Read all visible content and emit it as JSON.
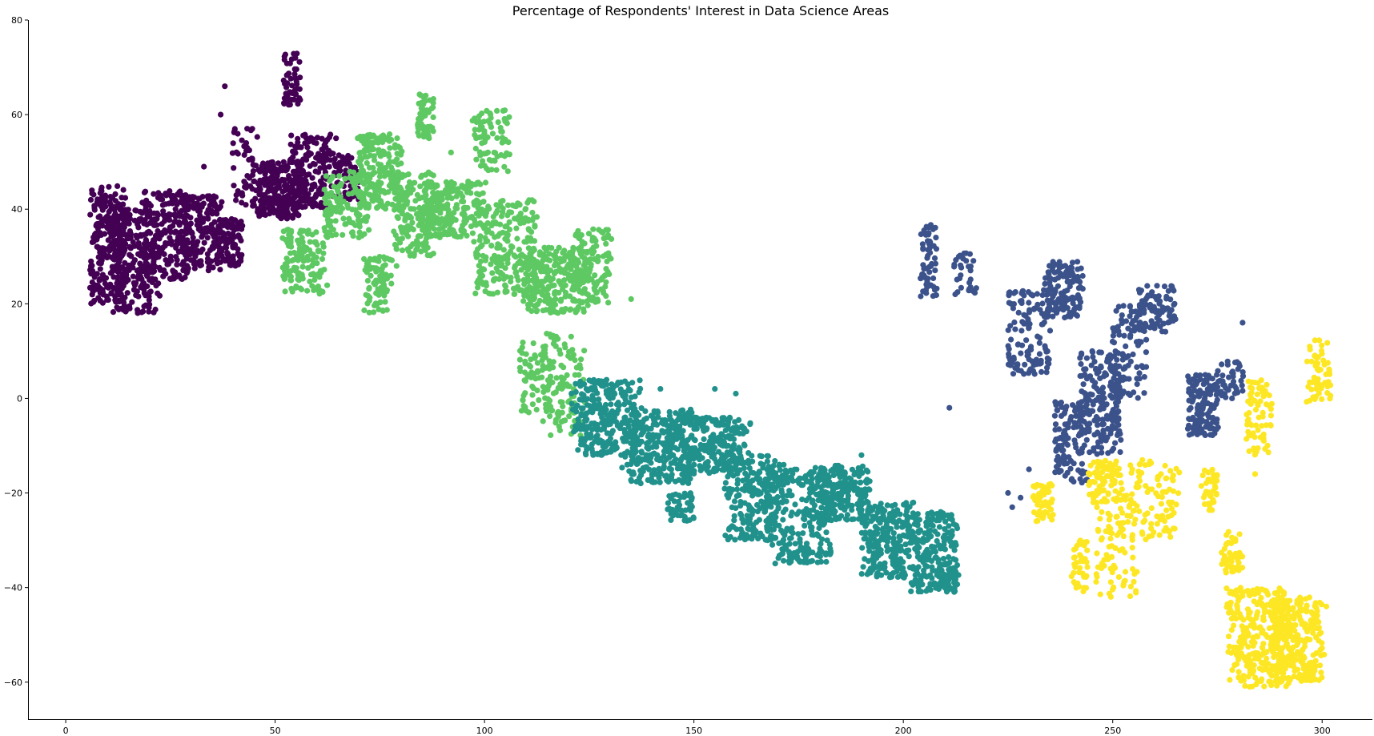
{
  "chart_data": {
    "type": "scatter",
    "title": "Percentage of Respondents' Interest in Data Science Areas",
    "xlabel": "",
    "ylabel": "",
    "xlim": [
      -9,
      312
    ],
    "ylim": [
      -68,
      80
    ],
    "xticks": [
      0,
      50,
      100,
      150,
      200,
      250,
      300
    ],
    "yticks": [
      -60,
      -40,
      -20,
      0,
      20,
      40,
      60,
      80
    ],
    "ytick_labels": [
      "−60",
      "−40",
      "−20",
      "0",
      "20",
      "40",
      "60",
      "80"
    ],
    "grid": false,
    "legend": "none",
    "spines": "left-bottom",
    "marker_radius": 3.6,
    "series": [
      {
        "color": "#440154",
        "clusters": [
          {
            "x": [
              6,
              14
            ],
            "y": [
              20,
              45
            ],
            "n": 260,
            "tilt": 0.6
          },
          {
            "x": [
              12,
              22
            ],
            "y": [
              18,
              40
            ],
            "n": 220,
            "tilt": 0.5
          },
          {
            "x": [
              18,
              30
            ],
            "y": [
              25,
              44
            ],
            "n": 220,
            "tilt": 0.5
          },
          {
            "x": [
              28,
              37
            ],
            "y": [
              27,
              43
            ],
            "n": 170,
            "tilt": 0.4
          },
          {
            "x": [
              36,
              42
            ],
            "y": [
              28,
              38
            ],
            "n": 100,
            "tilt": 0.5
          },
          {
            "x": [
              40,
              46
            ],
            "y": [
              40,
              58
            ],
            "n": 55,
            "tilt": 0.8
          },
          {
            "x": [
              46,
              56
            ],
            "y": [
              38,
              50
            ],
            "n": 240,
            "tilt": 0.3
          },
          {
            "x": [
              52,
              56
            ],
            "y": [
              62,
              73
            ],
            "n": 50,
            "tilt": 1.0
          },
          {
            "x": [
              54,
              64
            ],
            "y": [
              40,
              56
            ],
            "n": 170,
            "tilt": 0.4
          },
          {
            "x": [
              64,
              70
            ],
            "y": [
              42,
              52
            ],
            "n": 60,
            "tilt": 0.6
          }
        ],
        "points": [
          [
            33,
            49
          ],
          [
            37,
            60
          ],
          [
            38,
            66
          ],
          [
            27,
            31
          ],
          [
            49,
            44
          ]
        ]
      },
      {
        "color": "#5ec962",
        "clusters": [
          {
            "x": [
              52,
              62
            ],
            "y": [
              22,
              36
            ],
            "n": 130,
            "tilt": 0.7
          },
          {
            "x": [
              62,
              72
            ],
            "y": [
              34,
              48
            ],
            "n": 130,
            "tilt": 0.6
          },
          {
            "x": [
              70,
              80
            ],
            "y": [
              40,
              56
            ],
            "n": 200,
            "tilt": 0.6
          },
          {
            "x": [
              78,
              88
            ],
            "y": [
              30,
              48
            ],
            "n": 170,
            "tilt": 0.6
          },
          {
            "x": [
              84,
              88
            ],
            "y": [
              55,
              65
            ],
            "n": 55,
            "tilt": 1.0
          },
          {
            "x": [
              86,
              100
            ],
            "y": [
              34,
              46
            ],
            "n": 200,
            "tilt": 0.4
          },
          {
            "x": [
              71,
              78
            ],
            "y": [
              18,
              30
            ],
            "n": 80,
            "tilt": 0.9
          },
          {
            "x": [
              97,
              106
            ],
            "y": [
              48,
              61
            ],
            "n": 80,
            "tilt": 0.8
          },
          {
            "x": [
              98,
              112
            ],
            "y": [
              22,
              42
            ],
            "n": 240,
            "tilt": 0.6
          },
          {
            "x": [
              110,
              124
            ],
            "y": [
              18,
              32
            ],
            "n": 240,
            "tilt": 0.5
          },
          {
            "x": [
              122,
              130
            ],
            "y": [
              20,
              36
            ],
            "n": 120,
            "tilt": 0.6
          },
          {
            "x": [
              108,
              116
            ],
            "y": [
              -3,
              12
            ],
            "n": 70,
            "tilt": 0.8
          },
          {
            "x": [
              114,
              124
            ],
            "y": [
              -8,
              14
            ],
            "n": 110,
            "tilt": 0.9
          }
        ],
        "points": [
          [
            135,
            21
          ],
          [
            70,
            34
          ],
          [
            84,
            32
          ],
          [
            79,
            28
          ],
          [
            92,
            52
          ],
          [
            98,
            55
          ]
        ]
      },
      {
        "color": "#21918c",
        "clusters": [
          {
            "x": [
              122,
              136
            ],
            "y": [
              -12,
              4
            ],
            "n": 270,
            "tilt": 0.2
          },
          {
            "x": [
              134,
              150
            ],
            "y": [
              -18,
              -2
            ],
            "n": 300,
            "tilt": 0.2
          },
          {
            "x": [
              148,
              162
            ],
            "y": [
              -16,
              -4
            ],
            "n": 230,
            "tilt": 0.2
          },
          {
            "x": [
              144,
              150
            ],
            "y": [
              -26,
              -20
            ],
            "n": 50,
            "tilt": 0.5
          },
          {
            "x": [
              158,
              170
            ],
            "y": [
              -30,
              -12
            ],
            "n": 230,
            "tilt": 0.5
          },
          {
            "x": [
              168,
              182
            ],
            "y": [
              -35,
              -14
            ],
            "n": 260,
            "tilt": 0.5
          },
          {
            "x": [
              180,
              192
            ],
            "y": [
              -26,
              -14
            ],
            "n": 200,
            "tilt": 0.4
          },
          {
            "x": [
              190,
              202
            ],
            "y": [
              -38,
              -22
            ],
            "n": 230,
            "tilt": 0.6
          },
          {
            "x": [
              202,
              213
            ],
            "y": [
              -41,
              -24
            ],
            "n": 230,
            "tilt": 0.7
          }
        ],
        "points": [
          [
            155,
            2
          ],
          [
            160,
            1
          ],
          [
            142,
            2
          ],
          [
            178,
            -18
          ],
          [
            190,
            -12
          ]
        ]
      },
      {
        "color": "#3b528b",
        "clusters": [
          {
            "x": [
              204,
              208
            ],
            "y": [
              21,
              37
            ],
            "n": 60,
            "tilt": 0.9
          },
          {
            "x": [
              212,
              218
            ],
            "y": [
              22,
              31
            ],
            "n": 30,
            "tilt": 0.9
          },
          {
            "x": [
              225,
              235
            ],
            "y": [
              5,
              23
            ],
            "n": 120,
            "tilt": 0.9
          },
          {
            "x": [
              234,
              243
            ],
            "y": [
              17,
              29
            ],
            "n": 130,
            "tilt": 0.8
          },
          {
            "x": [
              236,
              244
            ],
            "y": [
              -18,
              0
            ],
            "n": 110,
            "tilt": 1.0
          },
          {
            "x": [
              242,
              252
            ],
            "y": [
              -12,
              10
            ],
            "n": 190,
            "tilt": 0.9
          },
          {
            "x": [
              250,
              258
            ],
            "y": [
              0,
              20
            ],
            "n": 100,
            "tilt": 0.9
          },
          {
            "x": [
              256,
              265
            ],
            "y": [
              14,
              24
            ],
            "n": 80,
            "tilt": 0.8
          },
          {
            "x": [
              268,
              275
            ],
            "y": [
              -8,
              5
            ],
            "n": 140,
            "tilt": 0.8
          },
          {
            "x": [
              275,
              281
            ],
            "y": [
              0,
              8
            ],
            "n": 40,
            "tilt": 0.8
          }
        ],
        "points": [
          [
            211,
            -2
          ],
          [
            228,
            -21
          ],
          [
            226,
            -23
          ],
          [
            225,
            -20
          ],
          [
            281,
            16
          ],
          [
            230,
            -15
          ],
          [
            235,
            25
          ]
        ]
      },
      {
        "color": "#fde725",
        "clusters": [
          {
            "x": [
              231,
              236
            ],
            "y": [
              -26,
              -18
            ],
            "n": 60,
            "tilt": 0.8
          },
          {
            "x": [
              240,
              244
            ],
            "y": [
              -41,
              -30
            ],
            "n": 40,
            "tilt": 1.0
          },
          {
            "x": [
              244,
              252
            ],
            "y": [
              -22,
              -13
            ],
            "n": 60,
            "tilt": 0.9
          },
          {
            "x": [
              246,
              256
            ],
            "y": [
              -42,
              -14
            ],
            "n": 130,
            "tilt": 1.0
          },
          {
            "x": [
              256,
              266
            ],
            "y": [
              -30,
              -13
            ],
            "n": 80,
            "tilt": 0.9
          },
          {
            "x": [
              271,
              275
            ],
            "y": [
              -24,
              -15
            ],
            "n": 40,
            "tilt": 0.9
          },
          {
            "x": [
              276,
              281
            ],
            "y": [
              -37,
              -28
            ],
            "n": 50,
            "tilt": 0.9
          },
          {
            "x": [
              282,
              288
            ],
            "y": [
              -12,
              4
            ],
            "n": 70,
            "tilt": 0.9
          },
          {
            "x": [
              278,
              292
            ],
            "y": [
              -61,
              -40
            ],
            "n": 300,
            "tilt": 0.6
          },
          {
            "x": [
              288,
              300
            ],
            "y": [
              -60,
              -42
            ],
            "n": 240,
            "tilt": 0.6
          },
          {
            "x": [
              296,
              302
            ],
            "y": [
              -1,
              13
            ],
            "n": 60,
            "tilt": 1.0
          }
        ],
        "points": [
          [
            301,
            -44
          ],
          [
            235,
            -22
          ],
          [
            284,
            -16
          ]
        ]
      }
    ]
  }
}
